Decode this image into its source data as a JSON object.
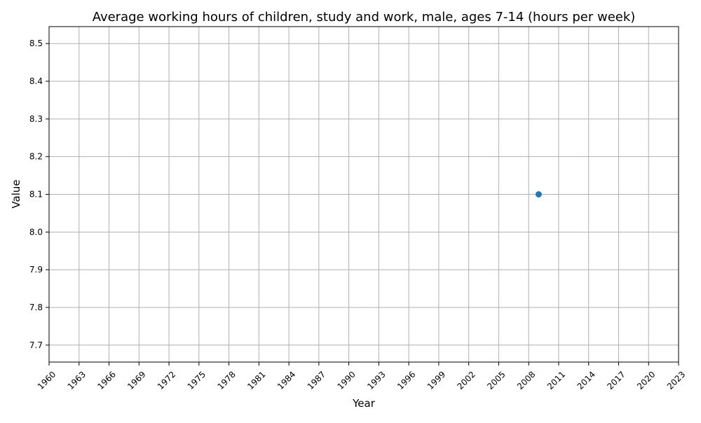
{
  "chart_data": {
    "type": "scatter",
    "title": "Average working hours of children, study and work, male, ages 7-14 (hours per week)",
    "xlabel": "Year",
    "ylabel": "Value",
    "xlim": [
      1960,
      2023
    ],
    "ylim": [
      7.655,
      8.545
    ],
    "x_ticks": [
      1960,
      1963,
      1966,
      1969,
      1972,
      1975,
      1978,
      1981,
      1984,
      1987,
      1990,
      1993,
      1996,
      1999,
      2002,
      2005,
      2008,
      2011,
      2014,
      2017,
      2020,
      2023
    ],
    "y_ticks": [
      7.7,
      7.8,
      7.9,
      8.0,
      8.1,
      8.2,
      8.3,
      8.4,
      8.5
    ],
    "grid": true,
    "x": [
      2009
    ],
    "values": [
      8.1
    ],
    "colors": {
      "marker": "#1f77b4",
      "grid": "#b0b0b0",
      "axis": "#000000"
    }
  }
}
